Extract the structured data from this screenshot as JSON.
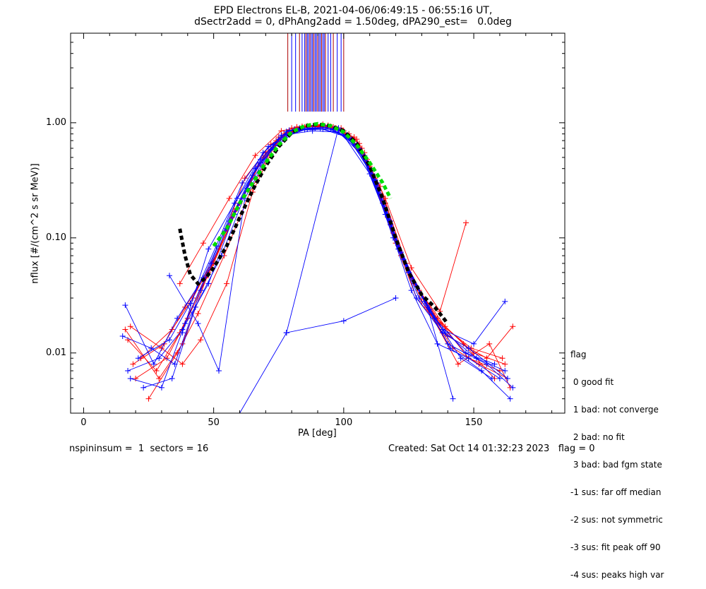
{
  "chart_data": {
    "type": "line",
    "title": "EPD Electrons EL-B, 2021-04-06/06:49:15 - 06:55:16 UT,",
    "subtitle": "dSectr2add = 0, dPhAng2add = 1.50deg, dPA290_est=   0.0deg",
    "xlabel": "PA [deg]",
    "ylabel": "nflux [#/(cm^2 s sr MeV)]",
    "xlim": [
      -5,
      185
    ],
    "ylim": [
      0.003,
      6.0
    ],
    "yscale": "log",
    "xticks": [
      0,
      50,
      100,
      150
    ],
    "yticks": [
      0.01,
      0.1,
      1.0
    ],
    "ytick_labels": [
      "0.01",
      "0.10",
      "1.00"
    ],
    "grid": false,
    "colors": {
      "series_a": "#ff0000",
      "series_b": "#0000ff",
      "fit_left": "#000000",
      "fit_main": "#00dd00"
    },
    "series": [
      {
        "color": "red",
        "values": [
          [
            18,
            0.017
          ],
          [
            30,
            0.011
          ],
          [
            38,
            0.008
          ],
          [
            45,
            0.013
          ],
          [
            55,
            0.04
          ],
          [
            65,
            0.25
          ],
          [
            75,
            0.75
          ],
          [
            85,
            0.92
          ],
          [
            95,
            0.93
          ],
          [
            105,
            0.72
          ],
          [
            118,
            0.13
          ],
          [
            130,
            0.028
          ],
          [
            142,
            0.011
          ],
          [
            152,
            0.008
          ],
          [
            163,
            0.006
          ]
        ]
      },
      {
        "color": "red",
        "values": [
          [
            20,
            0.006
          ],
          [
            32,
            0.009
          ],
          [
            40,
            0.02
          ],
          [
            50,
            0.06
          ],
          [
            60,
            0.2
          ],
          [
            70,
            0.55
          ],
          [
            80,
            0.9
          ],
          [
            90,
            0.96
          ],
          [
            100,
            0.85
          ],
          [
            110,
            0.42
          ],
          [
            120,
            0.09
          ],
          [
            128,
            0.03
          ],
          [
            140,
            0.014
          ],
          [
            155,
            0.009
          ],
          [
            165,
            0.017
          ]
        ]
      },
      {
        "color": "red",
        "values": [
          [
            17,
            0.013
          ],
          [
            28,
            0.007
          ],
          [
            37,
            0.015
          ],
          [
            47,
            0.045
          ],
          [
            57,
            0.15
          ],
          [
            67,
            0.42
          ],
          [
            77,
            0.8
          ],
          [
            88,
            0.9
          ],
          [
            98,
            0.88
          ],
          [
            108,
            0.55
          ],
          [
            116,
            0.2
          ],
          [
            126,
            0.045
          ],
          [
            136,
            0.02
          ],
          [
            148,
            0.009
          ],
          [
            160,
            0.007
          ]
        ]
      },
      {
        "color": "red",
        "values": [
          [
            22,
            0.009
          ],
          [
            34,
            0.016
          ],
          [
            42,
            0.03
          ],
          [
            52,
            0.08
          ],
          [
            62,
            0.33
          ],
          [
            72,
            0.65
          ],
          [
            82,
            0.92
          ],
          [
            92,
            0.97
          ],
          [
            102,
            0.8
          ],
          [
            112,
            0.33
          ],
          [
            122,
            0.07
          ],
          [
            132,
            0.025
          ],
          [
            144,
            0.008
          ],
          [
            156,
            0.012
          ],
          [
            164,
            0.005
          ]
        ]
      },
      {
        "color": "red",
        "values": [
          [
            19,
            0.008
          ],
          [
            31,
            0.012
          ],
          [
            39,
            0.025
          ],
          [
            49,
            0.055
          ],
          [
            59,
            0.18
          ],
          [
            69,
            0.5
          ],
          [
            79,
            0.85
          ],
          [
            89,
            0.94
          ],
          [
            99,
            0.9
          ],
          [
            109,
            0.48
          ],
          [
            119,
            0.11
          ],
          [
            129,
            0.035
          ],
          [
            139,
            0.017
          ],
          [
            150,
            0.01
          ],
          [
            162,
            0.008
          ]
        ]
      },
      {
        "color": "red",
        "values": [
          [
            25,
            0.004
          ],
          [
            36,
            0.01
          ],
          [
            44,
            0.022
          ],
          [
            54,
            0.07
          ],
          [
            64,
            0.25
          ],
          [
            74,
            0.7
          ],
          [
            84,
            0.93
          ],
          [
            94,
            0.95
          ],
          [
            104,
            0.75
          ],
          [
            114,
            0.28
          ],
          [
            124,
            0.06
          ],
          [
            134,
            0.022
          ],
          [
            146,
            0.012
          ],
          [
            158,
            0.006
          ]
        ]
      },
      {
        "color": "red",
        "values": [
          [
            16,
            0.016
          ],
          [
            29,
            0.006
          ],
          [
            38,
            0.012
          ],
          [
            48,
            0.05
          ],
          [
            58,
            0.17
          ],
          [
            68,
            0.45
          ],
          [
            78,
            0.82
          ],
          [
            87,
            0.93
          ],
          [
            97,
            0.9
          ],
          [
            107,
            0.6
          ],
          [
            117,
            0.15
          ],
          [
            127,
            0.04
          ],
          [
            137,
            0.018
          ],
          [
            149,
            0.011
          ],
          [
            161,
            0.009
          ]
        ]
      },
      {
        "color": "red",
        "values": [
          [
            37,
            0.04
          ],
          [
            46,
            0.09
          ],
          [
            56,
            0.22
          ],
          [
            66,
            0.52
          ],
          [
            76,
            0.85
          ],
          [
            86,
            0.94
          ],
          [
            96,
            0.92
          ],
          [
            106,
            0.66
          ],
          [
            116,
            0.22
          ],
          [
            126,
            0.055
          ],
          [
            137,
            0.023
          ],
          [
            147,
            0.135
          ]
        ]
      },
      {
        "color": "blue",
        "values": [
          [
            16,
            0.026
          ],
          [
            27,
            0.008
          ],
          [
            36,
            0.02
          ],
          [
            46,
            0.045
          ],
          [
            56,
            0.14
          ],
          [
            66,
            0.4
          ],
          [
            76,
            0.78
          ],
          [
            86,
            0.88
          ],
          [
            96,
            0.88
          ],
          [
            106,
            0.6
          ],
          [
            116,
            0.16
          ],
          [
            126,
            0.035
          ],
          [
            136,
            0.012
          ],
          [
            148,
            0.009
          ],
          [
            160,
            0.006
          ]
        ]
      },
      {
        "color": "blue",
        "values": [
          [
            18,
            0.006
          ],
          [
            30,
            0.005
          ],
          [
            39,
            0.018
          ],
          [
            49,
            0.06
          ],
          [
            59,
            0.22
          ],
          [
            69,
            0.55
          ],
          [
            79,
            0.86
          ],
          [
            89,
            0.9
          ],
          [
            99,
            0.86
          ],
          [
            109,
            0.45
          ],
          [
            119,
            0.1
          ],
          [
            129,
            0.03
          ],
          [
            139,
            0.015
          ],
          [
            151,
            0.009
          ],
          [
            162,
            0.007
          ]
        ]
      },
      {
        "color": "blue",
        "values": [
          [
            15,
            0.014
          ],
          [
            26,
            0.011
          ],
          [
            35,
            0.008
          ],
          [
            45,
            0.035
          ],
          [
            55,
            0.12
          ],
          [
            65,
            0.35
          ],
          [
            75,
            0.72
          ],
          [
            85,
            0.87
          ],
          [
            95,
            0.89
          ],
          [
            105,
            0.65
          ],
          [
            115,
            0.2
          ],
          [
            125,
            0.05
          ],
          [
            135,
            0.02
          ],
          [
            147,
            0.01
          ],
          [
            158,
            0.008
          ]
        ]
      },
      {
        "color": "blue",
        "values": [
          [
            21,
            0.009
          ],
          [
            33,
            0.013
          ],
          [
            41,
            0.027
          ],
          [
            51,
            0.085
          ],
          [
            61,
            0.3
          ],
          [
            71,
            0.62
          ],
          [
            81,
            0.88
          ],
          [
            91,
            0.89
          ],
          [
            101,
            0.78
          ],
          [
            111,
            0.36
          ],
          [
            121,
            0.08
          ],
          [
            131,
            0.028
          ],
          [
            141,
            0.011
          ],
          [
            153,
            0.007
          ],
          [
            164,
            0.004
          ]
        ]
      },
      {
        "color": "blue",
        "values": [
          [
            17,
            0.007
          ],
          [
            29,
            0.009
          ],
          [
            38,
            0.016
          ],
          [
            48,
            0.04
          ],
          [
            58,
            0.16
          ],
          [
            68,
            0.48
          ],
          [
            78,
            0.84
          ],
          [
            88,
            0.9
          ],
          [
            98,
            0.87
          ],
          [
            108,
            0.52
          ],
          [
            118,
            0.13
          ],
          [
            128,
            0.038
          ],
          [
            138,
            0.016
          ],
          [
            150,
            0.012
          ],
          [
            162,
            0.028
          ]
        ]
      },
      {
        "color": "blue",
        "values": [
          [
            23,
            0.005
          ],
          [
            34,
            0.006
          ],
          [
            43,
            0.025
          ],
          [
            53,
            0.07
          ],
          [
            63,
            0.27
          ],
          [
            73,
            0.64
          ],
          [
            83,
            0.9
          ],
          [
            93,
            0.91
          ],
          [
            103,
            0.72
          ],
          [
            113,
            0.3
          ],
          [
            123,
            0.065
          ],
          [
            133,
            0.024
          ],
          [
            145,
            0.009
          ],
          [
            157,
            0.006
          ]
        ]
      },
      {
        "color": "blue",
        "values": [
          [
            38,
            0.015
          ],
          [
            48,
            0.08
          ],
          [
            58,
            0.2
          ],
          [
            68,
            0.45
          ],
          [
            78,
            0.79
          ],
          [
            88,
            0.85
          ],
          [
            98,
            0.83
          ],
          [
            108,
            0.5
          ],
          [
            118,
            0.14
          ],
          [
            128,
            0.03
          ],
          [
            138,
            0.015
          ],
          [
            148,
            0.011
          ],
          [
            163,
            0.006
          ]
        ]
      },
      {
        "color": "blue",
        "values": [
          [
            33,
            0.047
          ],
          [
            44,
            0.018
          ],
          [
            52,
            0.007
          ],
          [
            62,
            0.22
          ],
          [
            72,
            0.58
          ],
          [
            82,
            0.86
          ],
          [
            92,
            0.88
          ],
          [
            102,
            0.74
          ],
          [
            112,
            0.32
          ],
          [
            122,
            0.075
          ],
          [
            132,
            0.026
          ],
          [
            142,
            0.004
          ]
        ]
      },
      {
        "color": "blue",
        "values": [
          [
            60,
            0.003
          ],
          [
            78,
            0.015
          ],
          [
            100,
            0.019
          ],
          [
            120,
            0.03
          ]
        ]
      },
      {
        "color": "blue",
        "values": [
          [
            78,
            0.015
          ],
          [
            98,
            0.9
          ],
          [
            110,
            0.36
          ],
          [
            125,
            0.05
          ],
          [
            140,
            0.012
          ],
          [
            155,
            0.008
          ],
          [
            165,
            0.005
          ]
        ]
      }
    ],
    "fit_curves": [
      {
        "name": "",
        "color": "black",
        "dashed": true,
        "values": [
          [
            37,
            0.12
          ],
          [
            39,
            0.07
          ],
          [
            41,
            0.048
          ],
          [
            44,
            0.04
          ],
          [
            47,
            0.045
          ],
          [
            50,
            0.055
          ],
          [
            55,
            0.085
          ],
          [
            60,
            0.15
          ],
          [
            65,
            0.26
          ],
          [
            70,
            0.42
          ],
          [
            75,
            0.62
          ],
          [
            80,
            0.82
          ],
          [
            85,
            0.94
          ],
          [
            90,
            0.97
          ],
          [
            95,
            0.94
          ],
          [
            100,
            0.85
          ],
          [
            105,
            0.66
          ],
          [
            110,
            0.42
          ],
          [
            115,
            0.22
          ],
          [
            120,
            0.1
          ],
          [
            125,
            0.05
          ],
          [
            130,
            0.032
          ],
          [
            135,
            0.025
          ],
          [
            140,
            0.018
          ]
        ]
      },
      {
        "name": "",
        "color": "green",
        "dashed": true,
        "values": [
          [
            50,
            0.085
          ],
          [
            55,
            0.12
          ],
          [
            60,
            0.2
          ],
          [
            65,
            0.3
          ],
          [
            70,
            0.45
          ],
          [
            75,
            0.64
          ],
          [
            80,
            0.83
          ],
          [
            85,
            0.94
          ],
          [
            90,
            0.98
          ],
          [
            95,
            0.94
          ],
          [
            100,
            0.83
          ],
          [
            105,
            0.64
          ],
          [
            110,
            0.45
          ],
          [
            115,
            0.3
          ],
          [
            118,
            0.22
          ]
        ]
      }
    ],
    "vertical_lines_x": [
      78.5,
      80,
      81.5,
      83,
      84,
      85,
      85.5,
      86,
      86.5,
      87,
      87.5,
      88,
      88.5,
      89,
      89.5,
      90,
      90.5,
      91,
      91.5,
      92,
      92.5,
      93,
      94,
      95,
      96,
      97.5,
      99,
      100
    ],
    "legend": {
      "header": "flag",
      "entries": [
        " 0 good fit",
        " 1 bad: not converge",
        " 2 bad: no fit",
        " 3 bad: bad fgm state",
        "-1 sus: far off median",
        "-2 sus: not symmetric",
        "-3 sus: fit peak off 90",
        "-4 sus: peaks high var"
      ],
      "position": "right"
    },
    "footer": {
      "left": "nspininsum =  1  sectors = 16",
      "right": "Created: Sat Oct 14 01:32:23 2023   flag = 0"
    }
  }
}
